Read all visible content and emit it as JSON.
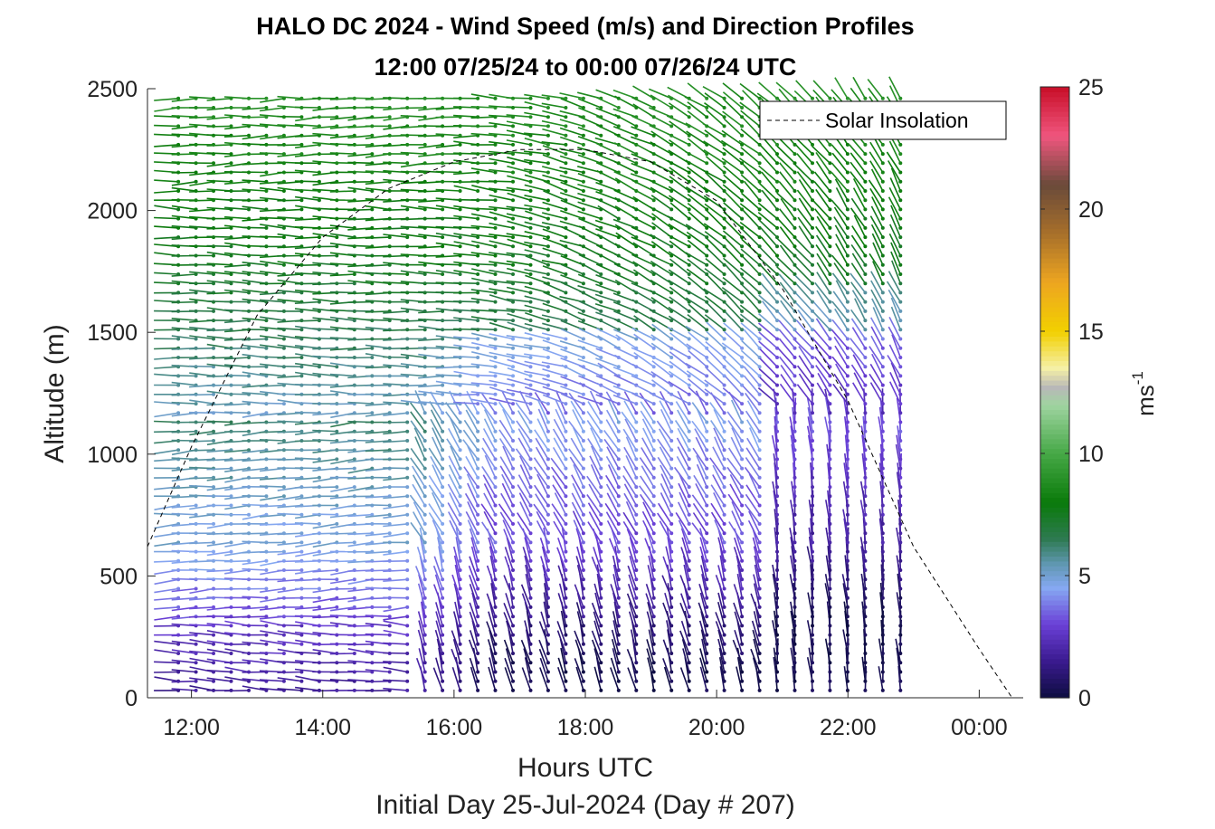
{
  "chart_data": {
    "type": "wind_barb_profile",
    "title": "HALO DC 2024 - Wind Speed (m/s) and Direction Profiles",
    "subtitle": "12:00 07/25/24 to 00:00 07/26/24  UTC",
    "xlabel": "Hours UTC",
    "ylabel": "Altitude (m)",
    "footer": "Initial Day 25-Jul-2024 (Day # 207)",
    "xlim": [
      11.33,
      24.67
    ],
    "ylim": [
      0,
      2500
    ],
    "xticks": [
      {
        "value": 12,
        "label": "12:00"
      },
      {
        "value": 14,
        "label": "14:00"
      },
      {
        "value": 16,
        "label": "16:00"
      },
      {
        "value": 18,
        "label": "18:00"
      },
      {
        "value": 20,
        "label": "20:00"
      },
      {
        "value": 22,
        "label": "22:00"
      },
      {
        "value": 24,
        "label": "00:00"
      }
    ],
    "yticks": [
      {
        "value": 0,
        "label": "0"
      },
      {
        "value": 500,
        "label": "500"
      },
      {
        "value": 1000,
        "label": "1000"
      },
      {
        "value": 1500,
        "label": "1500"
      },
      {
        "value": 2000,
        "label": "2000"
      },
      {
        "value": 2500,
        "label": "2500"
      }
    ],
    "colorbar": {
      "label": "ms",
      "label_exponent": "-1",
      "range": [
        0,
        25
      ],
      "ticks": [
        {
          "value": 0,
          "label": "0"
        },
        {
          "value": 5,
          "label": "5"
        },
        {
          "value": 10,
          "label": "10"
        },
        {
          "value": 15,
          "label": "15"
        },
        {
          "value": 20,
          "label": "20"
        },
        {
          "value": 25,
          "label": "25"
        }
      ],
      "stops": [
        {
          "v": 0,
          "color": "#0d0d40"
        },
        {
          "v": 1.5,
          "color": "#3a1a8e"
        },
        {
          "v": 3,
          "color": "#6a3fd6"
        },
        {
          "v": 4.5,
          "color": "#86a8f2"
        },
        {
          "v": 5.5,
          "color": "#5f97b0"
        },
        {
          "v": 6.5,
          "color": "#2e7a52"
        },
        {
          "v": 8,
          "color": "#0a7a0a"
        },
        {
          "v": 10,
          "color": "#46a846"
        },
        {
          "v": 12,
          "color": "#9fd4a0"
        },
        {
          "v": 12.7,
          "color": "#b8b8b8"
        },
        {
          "v": 13.5,
          "color": "#f5f0a6"
        },
        {
          "v": 15,
          "color": "#f2d000"
        },
        {
          "v": 17,
          "color": "#eda620"
        },
        {
          "v": 19,
          "color": "#a8702a"
        },
        {
          "v": 21,
          "color": "#6a4a3a"
        },
        {
          "v": 23,
          "color": "#f0567e"
        },
        {
          "v": 25,
          "color": "#c80e28"
        }
      ]
    },
    "legend": {
      "position": "top-right",
      "entries": [
        {
          "label": "Solar Insolation",
          "style": "dashed",
          "color": "#000000"
        }
      ]
    },
    "solar_insolation_curve": {
      "x": [
        11.33,
        12,
        13,
        14,
        15,
        16,
        17,
        18,
        19,
        20,
        21,
        22,
        23,
        24,
        24.5
      ],
      "y": [
        620,
        1030,
        1570,
        1890,
        2090,
        2200,
        2250,
        2250,
        2200,
        2040,
        1680,
        1220,
        620,
        200,
        0
      ]
    },
    "observation_range_hours": [
      11.8,
      22.8
    ],
    "observation_altitude_range_m": [
      30,
      2460
    ],
    "profile_count": 42,
    "levels_per_profile": 65
  }
}
